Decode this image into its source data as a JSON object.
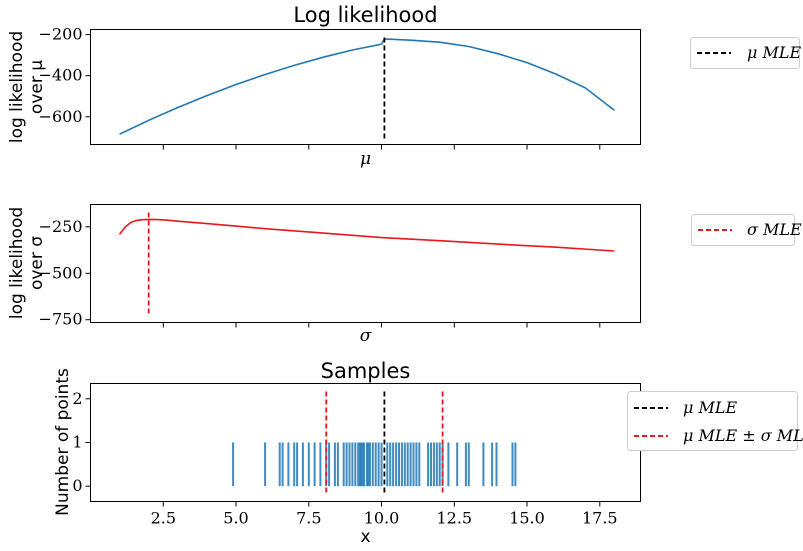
{
  "colors": {
    "blue": "#1f77b4",
    "red": "#e8191c",
    "black": "#000000"
  },
  "chart_data": [
    {
      "type": "line",
      "title": "Log likelihood",
      "xlabel": "μ",
      "ylabel": "log likelihood",
      "ylabel_line2": "over μ",
      "xlim": [
        0.0,
        18.9
      ],
      "ylim": [
        -735,
        -175
      ],
      "xticks_labeled": false,
      "yticks": [
        -200,
        -400,
        -600
      ],
      "ytick_labels": [
        "−200",
        "−400",
        "−600"
      ],
      "series": [
        {
          "color": "#1f77b4",
          "x": [
            1.0,
            2.0,
            3.0,
            4.0,
            5.0,
            6.0,
            7.0,
            8.0,
            9.0,
            10.0,
            10.1,
            11.0,
            12.0,
            13.0,
            14.0,
            15.0,
            16.0,
            17.0,
            18.0
          ],
          "y": [
            -685,
            -617,
            -555,
            -497,
            -443,
            -394,
            -350,
            -310,
            -275,
            -246,
            -221,
            -227,
            -237,
            -258,
            -293,
            -336,
            -392,
            -459,
            -568
          ]
        }
      ],
      "vlines": [
        {
          "x": 10.1,
          "color": "#000000",
          "style": "dashed"
        }
      ],
      "legend": [
        {
          "label": "μ MLE",
          "color": "#000000",
          "style": "dashed"
        }
      ]
    },
    {
      "type": "line",
      "title": "",
      "xlabel": "σ",
      "ylabel": "log likelihood",
      "ylabel_line2": "over σ",
      "xlim": [
        0.0,
        18.9
      ],
      "ylim": [
        -765,
        -130
      ],
      "xticks_labeled": false,
      "yticks": [
        -250,
        -500,
        -750
      ],
      "ytick_labels": [
        "−250",
        "−500",
        "−750"
      ],
      "series": [
        {
          "color": "#e8191c",
          "x": [
            1.0,
            1.2,
            1.4,
            1.6,
            1.8,
            2.0,
            2.3,
            2.6,
            3.0,
            4.0,
            5.0,
            6.0,
            8.0,
            10.0,
            12.0,
            14.0,
            16.0,
            18.0
          ],
          "y": [
            -290,
            -250,
            -225,
            -215,
            -212,
            -210,
            -211,
            -214,
            -220,
            -233,
            -246,
            -260,
            -284,
            -308,
            -325,
            -343,
            -360,
            -380
          ]
        }
      ],
      "vlines": [
        {
          "x": 2.0,
          "color": "#e8191c",
          "style": "dashed"
        }
      ],
      "legend": [
        {
          "label": "σ MLE",
          "color": "#e8191c",
          "style": "dashed"
        }
      ]
    },
    {
      "type": "bar",
      "title": "Samples",
      "xlabel": "x",
      "ylabel": "Number of points",
      "xlim": [
        0.0,
        18.9
      ],
      "ylim": [
        -0.35,
        2.35
      ],
      "xticks": [
        2.5,
        5.0,
        7.5,
        10.0,
        12.5,
        15.0,
        17.5
      ],
      "xtick_labels": [
        "2.5",
        "5.0",
        "7.5",
        "10.0",
        "12.5",
        "15.0",
        "17.5"
      ],
      "yticks": [
        0,
        1,
        2
      ],
      "ytick_labels": [
        "0",
        "1",
        "2"
      ],
      "samples": [
        4.9,
        6.0,
        6.5,
        6.6,
        6.8,
        7.0,
        7.1,
        7.3,
        7.5,
        7.7,
        7.9,
        8.1,
        8.2,
        8.4,
        8.5,
        8.7,
        8.8,
        8.9,
        9.0,
        9.1,
        9.2,
        9.25,
        9.3,
        9.35,
        9.4,
        9.5,
        9.55,
        9.6,
        9.7,
        9.8,
        9.9,
        10.0,
        10.2,
        10.3,
        10.4,
        10.5,
        10.6,
        10.7,
        10.8,
        10.9,
        11.0,
        11.1,
        11.2,
        11.3,
        11.6,
        11.7,
        11.8,
        11.9,
        12.0,
        12.1,
        12.3,
        12.6,
        12.9,
        13.0,
        13.5,
        13.8,
        13.95,
        14.5,
        14.6
      ],
      "bar_color": "#1f77b4",
      "vlines": [
        {
          "x": 10.1,
          "color": "#000000",
          "style": "dashed"
        },
        {
          "x": 8.1,
          "color": "#e8191c",
          "style": "dashed"
        },
        {
          "x": 12.1,
          "color": "#e8191c",
          "style": "dashed"
        }
      ],
      "legend": [
        {
          "label": "μ MLE",
          "color": "#000000",
          "style": "dashed"
        },
        {
          "label": "μ MLE ± σ MLE",
          "color": "#e8191c",
          "style": "dashed"
        }
      ]
    }
  ]
}
